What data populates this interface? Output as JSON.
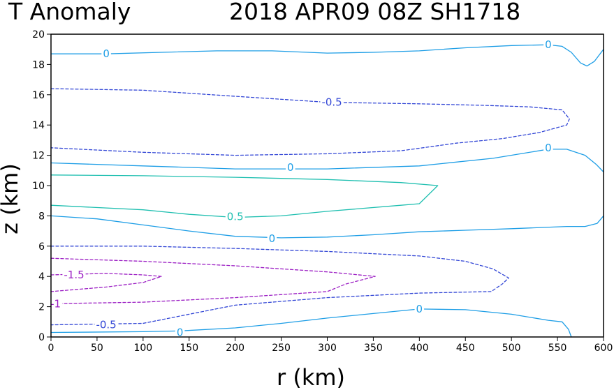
{
  "chart_data": {
    "type": "contour",
    "title_left": "T Anomaly",
    "title_right": "2018 APR09 08Z  SH1718",
    "xlabel": "r (km)",
    "ylabel": "z (km)",
    "xlim": [
      0,
      600
    ],
    "ylim": [
      0,
      20
    ],
    "xticks": [
      0,
      50,
      100,
      150,
      200,
      250,
      300,
      350,
      400,
      450,
      500,
      550,
      600
    ],
    "yticks": [
      0,
      2,
      4,
      6,
      8,
      10,
      12,
      14,
      16,
      18,
      20
    ],
    "colors": {
      "zero": "#1e9ee6",
      "positive": "#1fbfb0",
      "neg_small": "#3347d6",
      "neg_large": "#9c1fc4"
    },
    "contours": [
      {
        "level": "0",
        "style": "solid",
        "color_key": "zero",
        "points": [
          [
            0,
            18.7
          ],
          [
            60,
            18.7
          ],
          [
            120,
            18.8
          ],
          [
            180,
            18.9
          ],
          [
            240,
            18.9
          ],
          [
            300,
            18.75
          ],
          [
            350,
            18.8
          ],
          [
            400,
            18.9
          ],
          [
            450,
            19.1
          ],
          [
            500,
            19.25
          ],
          [
            540,
            19.3
          ],
          [
            555,
            19.2
          ],
          [
            565,
            18.8
          ],
          [
            575,
            18.1
          ],
          [
            582,
            17.9
          ],
          [
            590,
            18.2
          ],
          [
            600,
            19.0
          ]
        ],
        "labels": [
          {
            "text": "0",
            "x": 60,
            "y": 18.7
          },
          {
            "text": "0",
            "x": 540,
            "y": 19.3
          }
        ]
      },
      {
        "level": "-0.5",
        "style": "dashed",
        "color_key": "neg_small",
        "points": [
          [
            0,
            16.4
          ],
          [
            100,
            16.3
          ],
          [
            200,
            15.9
          ],
          [
            300,
            15.5
          ],
          [
            400,
            15.4
          ],
          [
            470,
            15.3
          ],
          [
            520,
            15.2
          ],
          [
            555,
            15.0
          ],
          [
            563,
            14.4
          ],
          [
            560,
            14.0
          ],
          [
            530,
            13.5
          ],
          [
            490,
            13.1
          ],
          [
            440,
            12.8
          ],
          [
            380,
            12.3
          ],
          [
            300,
            12.1
          ],
          [
            200,
            12.0
          ],
          [
            100,
            12.2
          ],
          [
            0,
            12.5
          ]
        ],
        "labels": [
          {
            "text": "-0.5",
            "x": 305,
            "y": 15.5
          }
        ]
      },
      {
        "level": "0",
        "style": "solid",
        "color_key": "zero",
        "points": [
          [
            0,
            11.5
          ],
          [
            100,
            11.3
          ],
          [
            200,
            11.1
          ],
          [
            300,
            11.1
          ],
          [
            400,
            11.3
          ],
          [
            480,
            11.8
          ],
          [
            540,
            12.4
          ],
          [
            560,
            12.4
          ],
          [
            580,
            12.0
          ],
          [
            592,
            11.4
          ],
          [
            600,
            10.9
          ]
        ],
        "labels": [
          {
            "text": "0",
            "x": 260,
            "y": 11.2
          },
          {
            "text": "0",
            "x": 540,
            "y": 12.5
          }
        ]
      },
      {
        "level": "0.5",
        "style": "solid",
        "color_key": "positive",
        "points": [
          [
            0,
            10.7
          ],
          [
            100,
            10.65
          ],
          [
            200,
            10.55
          ],
          [
            300,
            10.4
          ],
          [
            380,
            10.2
          ],
          [
            420,
            10.0
          ],
          [
            410,
            9.4
          ],
          [
            400,
            8.8
          ],
          [
            380,
            8.7
          ],
          [
            300,
            8.3
          ],
          [
            250,
            8.0
          ],
          [
            200,
            7.9
          ],
          [
            150,
            8.1
          ],
          [
            100,
            8.4
          ],
          [
            0,
            8.7
          ]
        ],
        "labels": [
          {
            "text": "0.5",
            "x": 200,
            "y": 7.95
          }
        ]
      },
      {
        "level": "0",
        "style": "solid",
        "color_key": "zero",
        "points": [
          [
            0,
            8.0
          ],
          [
            50,
            7.8
          ],
          [
            100,
            7.4
          ],
          [
            150,
            7.0
          ],
          [
            200,
            6.65
          ],
          [
            250,
            6.55
          ],
          [
            300,
            6.6
          ],
          [
            350,
            6.75
          ],
          [
            400,
            6.95
          ],
          [
            450,
            7.05
          ],
          [
            500,
            7.15
          ],
          [
            560,
            7.3
          ],
          [
            580,
            7.3
          ],
          [
            593,
            7.5
          ],
          [
            600,
            8.0
          ]
        ],
        "labels": [
          {
            "text": "0",
            "x": 240,
            "y": 6.5
          }
        ]
      },
      {
        "level": "-0.5",
        "style": "dashed",
        "color_key": "neg_small",
        "points": [
          [
            0,
            6.0
          ],
          [
            100,
            6.0
          ],
          [
            200,
            5.85
          ],
          [
            300,
            5.65
          ],
          [
            400,
            5.35
          ],
          [
            450,
            5.0
          ],
          [
            480,
            4.5
          ],
          [
            497,
            3.9
          ],
          [
            490,
            3.5
          ],
          [
            478,
            3.0
          ],
          [
            400,
            2.9
          ],
          [
            300,
            2.6
          ],
          [
            200,
            2.1
          ],
          [
            150,
            1.5
          ],
          [
            100,
            0.9
          ],
          [
            0,
            0.8
          ]
        ],
        "labels": [
          {
            "text": "-0.5",
            "x": 60,
            "y": 0.8
          }
        ]
      },
      {
        "level": "-1",
        "style": "dashed",
        "color_key": "neg_large",
        "points": [
          [
            0,
            5.2
          ],
          [
            100,
            5.0
          ],
          [
            200,
            4.7
          ],
          [
            300,
            4.3
          ],
          [
            352,
            4.0
          ],
          [
            320,
            3.5
          ],
          [
            300,
            3.0
          ],
          [
            200,
            2.6
          ],
          [
            100,
            2.3
          ],
          [
            0,
            2.2
          ]
        ],
        "labels": [
          {
            "text": "-1",
            "x": 5,
            "y": 2.2
          }
        ]
      },
      {
        "level": "-1.5",
        "style": "dashed",
        "color_key": "neg_large",
        "points": [
          [
            0,
            4.1
          ],
          [
            60,
            4.2
          ],
          [
            100,
            4.1
          ],
          [
            120,
            4.0
          ],
          [
            100,
            3.6
          ],
          [
            60,
            3.3
          ],
          [
            0,
            3.0
          ]
        ],
        "labels": [
          {
            "text": "-1.5",
            "x": 25,
            "y": 4.1
          }
        ]
      },
      {
        "level": "0",
        "style": "solid",
        "color_key": "zero",
        "points": [
          [
            0,
            0.3
          ],
          [
            100,
            0.35
          ],
          [
            140,
            0.4
          ],
          [
            200,
            0.6
          ],
          [
            250,
            0.9
          ],
          [
            300,
            1.25
          ],
          [
            350,
            1.55
          ],
          [
            400,
            1.85
          ],
          [
            450,
            1.8
          ],
          [
            500,
            1.5
          ],
          [
            540,
            1.1
          ],
          [
            555,
            1.0
          ],
          [
            562,
            0.5
          ],
          [
            565,
            0.0
          ]
        ],
        "labels": [
          {
            "text": "0",
            "x": 140,
            "y": 0.3
          },
          {
            "text": "0",
            "x": 400,
            "y": 1.85
          }
        ]
      }
    ]
  }
}
